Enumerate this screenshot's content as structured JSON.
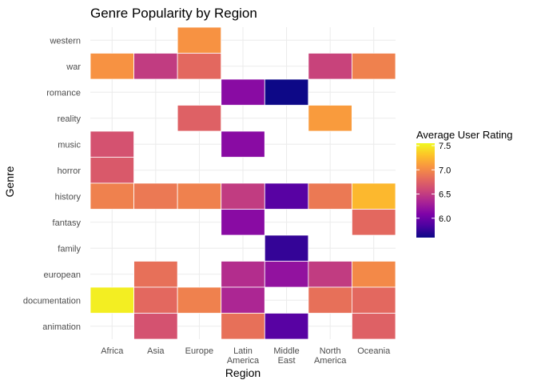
{
  "chart_data": {
    "type": "heatmap",
    "title": "Genre Popularity by Region",
    "xlabel": "Region",
    "ylabel": "Genre",
    "x_categories": [
      "Africa",
      "Asia",
      "Europe",
      "Latin\nAmerica",
      "Middle\nEast",
      "North\nAmerica",
      "Oceania"
    ],
    "y_categories": [
      "western",
      "war",
      "romance",
      "reality",
      "music",
      "horror",
      "history",
      "fantasy",
      "family",
      "european",
      "documentation",
      "animation"
    ],
    "cells": [
      {
        "x": "Europe",
        "y": "western",
        "value": 7.05
      },
      {
        "x": "Africa",
        "y": "war",
        "value": 7.05
      },
      {
        "x": "Asia",
        "y": "war",
        "value": 6.5
      },
      {
        "x": "Europe",
        "y": "war",
        "value": 6.8
      },
      {
        "x": "North\nAmerica",
        "y": "war",
        "value": 6.55
      },
      {
        "x": "Oceania",
        "y": "war",
        "value": 6.95
      },
      {
        "x": "Latin\nAmerica",
        "y": "romance",
        "value": 6.15
      },
      {
        "x": "Middle\nEast",
        "y": "romance",
        "value": 5.6
      },
      {
        "x": "Europe",
        "y": "reality",
        "value": 6.75
      },
      {
        "x": "North\nAmerica",
        "y": "reality",
        "value": 7.1
      },
      {
        "x": "Africa",
        "y": "music",
        "value": 6.65
      },
      {
        "x": "Latin\nAmerica",
        "y": "music",
        "value": 6.15
      },
      {
        "x": "Africa",
        "y": "horror",
        "value": 6.7
      },
      {
        "x": "Africa",
        "y": "history",
        "value": 6.95
      },
      {
        "x": "Asia",
        "y": "history",
        "value": 6.9
      },
      {
        "x": "Europe",
        "y": "history",
        "value": 6.95
      },
      {
        "x": "Latin\nAmerica",
        "y": "history",
        "value": 6.5
      },
      {
        "x": "Middle\nEast",
        "y": "history",
        "value": 5.9
      },
      {
        "x": "North\nAmerica",
        "y": "history",
        "value": 6.9
      },
      {
        "x": "Oceania",
        "y": "history",
        "value": 7.25
      },
      {
        "x": "Latin\nAmerica",
        "y": "fantasy",
        "value": 6.15
      },
      {
        "x": "Oceania",
        "y": "fantasy",
        "value": 6.8
      },
      {
        "x": "Middle\nEast",
        "y": "family",
        "value": 5.75
      },
      {
        "x": "Asia",
        "y": "european",
        "value": 6.85
      },
      {
        "x": "Latin\nAmerica",
        "y": "european",
        "value": 6.4
      },
      {
        "x": "Middle\nEast",
        "y": "european",
        "value": 6.2
      },
      {
        "x": "North\nAmerica",
        "y": "european",
        "value": 6.5
      },
      {
        "x": "Oceania",
        "y": "european",
        "value": 7.0
      },
      {
        "x": "Africa",
        "y": "documentation",
        "value": 7.5
      },
      {
        "x": "Asia",
        "y": "documentation",
        "value": 6.8
      },
      {
        "x": "Europe",
        "y": "documentation",
        "value": 6.95
      },
      {
        "x": "Latin\nAmerica",
        "y": "documentation",
        "value": 6.35
      },
      {
        "x": "North\nAmerica",
        "y": "documentation",
        "value": 6.85
      },
      {
        "x": "Oceania",
        "y": "documentation",
        "value": 6.8
      },
      {
        "x": "Asia",
        "y": "animation",
        "value": 6.65
      },
      {
        "x": "Latin\nAmerica",
        "y": "animation",
        "value": 6.85
      },
      {
        "x": "Middle\nEast",
        "y": "animation",
        "value": 5.9
      },
      {
        "x": "Oceania",
        "y": "animation",
        "value": 6.75
      }
    ],
    "legend": {
      "title": "Average User Rating",
      "placement": "right",
      "min": 5.6,
      "max": 7.55,
      "ticks": [
        "6.0",
        "6.5",
        "7.0",
        "7.5"
      ],
      "colormap": "plasma"
    },
    "grid": true
  }
}
